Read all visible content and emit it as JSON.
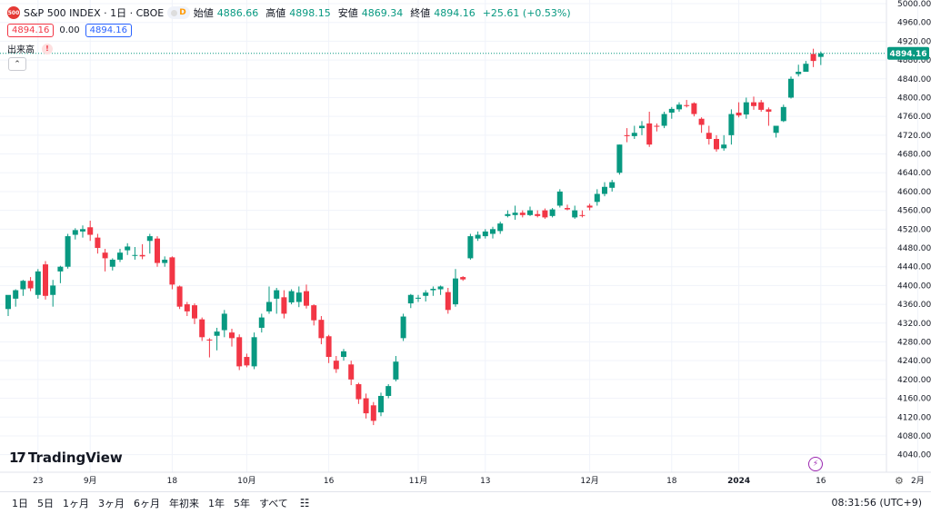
{
  "header": {
    "symbol_badge": "500",
    "title": "S&P 500 INDEX · 1日 · CBOE",
    "pill_letter": "D",
    "open_label": "始値",
    "open": "4886.66",
    "high_label": "高値",
    "high": "4898.15",
    "low_label": "安値",
    "low": "4869.34",
    "close_label": "終値",
    "close": "4894.16",
    "change": "+25.61 (+0.53%)",
    "price_box1": "4894.16",
    "spread": "0.00",
    "price_box2": "4894.16",
    "volume_label": "出来高",
    "warn": "!"
  },
  "logo": {
    "mark": "17",
    "name": "TradingView"
  },
  "bottom": {
    "timeframes": [
      "1日",
      "5日",
      "1ヶ月",
      "3ヶ月",
      "6ヶ月",
      "年初来",
      "1年",
      "5年",
      "すべて"
    ],
    "clock": "08:31:56 (UTC+9)"
  },
  "colors": {
    "up": "#089981",
    "down": "#f23645",
    "grid": "#f0f3fa",
    "axis_text": "#131722",
    "price_tag": "#089981"
  },
  "chart_data": {
    "type": "candlestick",
    "title": "S&P 500 INDEX · 1日 · CBOE",
    "last_price": 4894.16,
    "ylim": [
      4020,
      5000
    ],
    "y_ticks": [
      4040,
      4080,
      4120,
      4160,
      4200,
      4240,
      4280,
      4320,
      4360,
      4400,
      4440,
      4480,
      4520,
      4560,
      4600,
      4640,
      4680,
      4720,
      4760,
      4800,
      4840,
      4880,
      4920,
      4960,
      5000
    ],
    "x_tick_labels": [
      {
        "label": "23",
        "index": 4
      },
      {
        "label": "9月",
        "index": 11
      },
      {
        "label": "18",
        "index": 22
      },
      {
        "label": "10月",
        "index": 32
      },
      {
        "label": "16",
        "index": 43
      },
      {
        "label": "11月",
        "index": 55
      },
      {
        "label": "13",
        "index": 64
      },
      {
        "label": "12月",
        "index": 78
      },
      {
        "label": "18",
        "index": 89
      },
      {
        "label": "2024",
        "index": 98
      },
      {
        "label": "16",
        "index": 109
      },
      {
        "label": "2月",
        "index": 122
      }
    ],
    "candles": [
      {
        "o": 4350,
        "h": 4378,
        "l": 4335,
        "c": 4380
      },
      {
        "o": 4372,
        "h": 4392,
        "l": 4355,
        "c": 4390
      },
      {
        "o": 4392,
        "h": 4412,
        "l": 4378,
        "c": 4410
      },
      {
        "o": 4410,
        "h": 4418,
        "l": 4388,
        "c": 4394
      },
      {
        "o": 4380,
        "h": 4435,
        "l": 4372,
        "c": 4430
      },
      {
        "o": 4445,
        "h": 4452,
        "l": 4370,
        "c": 4378
      },
      {
        "o": 4380,
        "h": 4412,
        "l": 4355,
        "c": 4400
      },
      {
        "o": 4430,
        "h": 4442,
        "l": 4405,
        "c": 4440
      },
      {
        "o": 4440,
        "h": 4510,
        "l": 4436,
        "c": 4505
      },
      {
        "o": 4508,
        "h": 4522,
        "l": 4498,
        "c": 4518
      },
      {
        "o": 4515,
        "h": 4528,
        "l": 4502,
        "c": 4520
      },
      {
        "o": 4524,
        "h": 4538,
        "l": 4495,
        "c": 4508
      },
      {
        "o": 4502,
        "h": 4510,
        "l": 4468,
        "c": 4480
      },
      {
        "o": 4470,
        "h": 4478,
        "l": 4430,
        "c": 4458
      },
      {
        "o": 4440,
        "h": 4458,
        "l": 4432,
        "c": 4455
      },
      {
        "o": 4455,
        "h": 4478,
        "l": 4450,
        "c": 4470
      },
      {
        "o": 4475,
        "h": 4490,
        "l": 4465,
        "c": 4483
      },
      {
        "o": 4465,
        "h": 4482,
        "l": 4455,
        "c": 4465
      },
      {
        "o": 4465,
        "h": 4488,
        "l": 4456,
        "c": 4462
      },
      {
        "o": 4495,
        "h": 4510,
        "l": 4468,
        "c": 4505
      },
      {
        "o": 4500,
        "h": 4505,
        "l": 4440,
        "c": 4448
      },
      {
        "o": 4448,
        "h": 4462,
        "l": 4440,
        "c": 4455
      },
      {
        "o": 4460,
        "h": 4462,
        "l": 4392,
        "c": 4402
      },
      {
        "o": 4398,
        "h": 4400,
        "l": 4350,
        "c": 4355
      },
      {
        "o": 4360,
        "h": 4365,
        "l": 4335,
        "c": 4345
      },
      {
        "o": 4358,
        "h": 4362,
        "l": 4318,
        "c": 4330
      },
      {
        "o": 4328,
        "h": 4332,
        "l": 4282,
        "c": 4290
      },
      {
        "o": 4285,
        "h": 4288,
        "l": 4247,
        "c": 4283
      },
      {
        "o": 4293,
        "h": 4310,
        "l": 4262,
        "c": 4302
      },
      {
        "o": 4305,
        "h": 4348,
        "l": 4290,
        "c": 4340
      },
      {
        "o": 4300,
        "h": 4308,
        "l": 4270,
        "c": 4288
      },
      {
        "o": 4290,
        "h": 4296,
        "l": 4220,
        "c": 4228
      },
      {
        "o": 4248,
        "h": 4255,
        "l": 4226,
        "c": 4230
      },
      {
        "o": 4228,
        "h": 4300,
        "l": 4222,
        "c": 4290
      },
      {
        "o": 4310,
        "h": 4340,
        "l": 4300,
        "c": 4332
      },
      {
        "o": 4345,
        "h": 4398,
        "l": 4340,
        "c": 4365
      },
      {
        "o": 4372,
        "h": 4395,
        "l": 4340,
        "c": 4390
      },
      {
        "o": 4375,
        "h": 4390,
        "l": 4330,
        "c": 4340
      },
      {
        "o": 4364,
        "h": 4392,
        "l": 4360,
        "c": 4388
      },
      {
        "o": 4365,
        "h": 4398,
        "l": 4354,
        "c": 4385
      },
      {
        "o": 4388,
        "h": 4402,
        "l": 4351,
        "c": 4357
      },
      {
        "o": 4358,
        "h": 4360,
        "l": 4315,
        "c": 4326
      },
      {
        "o": 4327,
        "h": 4335,
        "l": 4275,
        "c": 4288
      },
      {
        "o": 4292,
        "h": 4295,
        "l": 4235,
        "c": 4248
      },
      {
        "o": 4240,
        "h": 4250,
        "l": 4214,
        "c": 4222
      },
      {
        "o": 4248,
        "h": 4265,
        "l": 4240,
        "c": 4260
      },
      {
        "o": 4232,
        "h": 4240,
        "l": 4188,
        "c": 4200
      },
      {
        "o": 4190,
        "h": 4193,
        "l": 4148,
        "c": 4158
      },
      {
        "o": 4160,
        "h": 4170,
        "l": 4117,
        "c": 4128
      },
      {
        "o": 4145,
        "h": 4152,
        "l": 4103,
        "c": 4112
      },
      {
        "o": 4130,
        "h": 4172,
        "l": 4122,
        "c": 4165
      },
      {
        "o": 4165,
        "h": 4190,
        "l": 4160,
        "c": 4186
      },
      {
        "o": 4200,
        "h": 4250,
        "l": 4196,
        "c": 4238
      },
      {
        "o": 4288,
        "h": 4340,
        "l": 4282,
        "c": 4334
      },
      {
        "o": 4362,
        "h": 4382,
        "l": 4352,
        "c": 4380
      },
      {
        "o": 4372,
        "h": 4380,
        "l": 4365,
        "c": 4374
      },
      {
        "o": 4378,
        "h": 4390,
        "l": 4366,
        "c": 4385
      },
      {
        "o": 4390,
        "h": 4398,
        "l": 4378,
        "c": 4393
      },
      {
        "o": 4392,
        "h": 4400,
        "l": 4380,
        "c": 4398
      },
      {
        "o": 4386,
        "h": 4395,
        "l": 4340,
        "c": 4348
      },
      {
        "o": 4360,
        "h": 4435,
        "l": 4355,
        "c": 4415
      },
      {
        "o": 4418,
        "h": 4420,
        "l": 4410,
        "c": 4413
      },
      {
        "o": 4458,
        "h": 4510,
        "l": 4455,
        "c": 4505
      },
      {
        "o": 4500,
        "h": 4515,
        "l": 4495,
        "c": 4508
      },
      {
        "o": 4505,
        "h": 4520,
        "l": 4500,
        "c": 4515
      },
      {
        "o": 4510,
        "h": 4525,
        "l": 4500,
        "c": 4520
      },
      {
        "o": 4516,
        "h": 4536,
        "l": 4510,
        "c": 4532
      },
      {
        "o": 4548,
        "h": 4560,
        "l": 4545,
        "c": 4552
      },
      {
        "o": 4550,
        "h": 4570,
        "l": 4540,
        "c": 4555
      },
      {
        "o": 4555,
        "h": 4560,
        "l": 4545,
        "c": 4550
      },
      {
        "o": 4550,
        "h": 4568,
        "l": 4548,
        "c": 4560
      },
      {
        "o": 4552,
        "h": 4560,
        "l": 4545,
        "c": 4548
      },
      {
        "o": 4560,
        "h": 4564,
        "l": 4542,
        "c": 4545
      },
      {
        "o": 4548,
        "h": 4565,
        "l": 4545,
        "c": 4562
      },
      {
        "o": 4570,
        "h": 4605,
        "l": 4566,
        "c": 4600
      },
      {
        "o": 4565,
        "h": 4572,
        "l": 4560,
        "c": 4562
      },
      {
        "o": 4545,
        "h": 4570,
        "l": 4542,
        "c": 4560
      },
      {
        "o": 4550,
        "h": 4560,
        "l": 4545,
        "c": 4548
      },
      {
        "o": 4570,
        "h": 4574,
        "l": 4560,
        "c": 4566
      },
      {
        "o": 4578,
        "h": 4605,
        "l": 4570,
        "c": 4595
      },
      {
        "o": 4595,
        "h": 4620,
        "l": 4590,
        "c": 4610
      },
      {
        "o": 4608,
        "h": 4625,
        "l": 4600,
        "c": 4620
      },
      {
        "o": 4640,
        "h": 4700,
        "l": 4636,
        "c": 4700
      },
      {
        "o": 4720,
        "h": 4735,
        "l": 4705,
        "c": 4718
      },
      {
        "o": 4718,
        "h": 4740,
        "l": 4712,
        "c": 4725
      },
      {
        "o": 4735,
        "h": 4750,
        "l": 4720,
        "c": 4740
      },
      {
        "o": 4745,
        "h": 4770,
        "l": 4695,
        "c": 4700
      },
      {
        "o": 4740,
        "h": 4745,
        "l": 4728,
        "c": 4738
      },
      {
        "o": 4740,
        "h": 4770,
        "l": 4735,
        "c": 4765
      },
      {
        "o": 4768,
        "h": 4780,
        "l": 4755,
        "c": 4776
      },
      {
        "o": 4775,
        "h": 4790,
        "l": 4770,
        "c": 4785
      },
      {
        "o": 4784,
        "h": 4795,
        "l": 4779,
        "c": 4782
      },
      {
        "o": 4788,
        "h": 4790,
        "l": 4760,
        "c": 4765
      },
      {
        "o": 4755,
        "h": 4758,
        "l": 4725,
        "c": 4742
      },
      {
        "o": 4725,
        "h": 4740,
        "l": 4700,
        "c": 4712
      },
      {
        "o": 4712,
        "h": 4720,
        "l": 4685,
        "c": 4690
      },
      {
        "o": 4692,
        "h": 4720,
        "l": 4687,
        "c": 4700
      },
      {
        "o": 4720,
        "h": 4775,
        "l": 4700,
        "c": 4765
      },
      {
        "o": 4768,
        "h": 4790,
        "l": 4758,
        "c": 4762
      },
      {
        "o": 4764,
        "h": 4800,
        "l": 4755,
        "c": 4790
      },
      {
        "o": 4790,
        "h": 4802,
        "l": 4774,
        "c": 4782
      },
      {
        "o": 4790,
        "h": 4795,
        "l": 4770,
        "c": 4774
      },
      {
        "o": 4775,
        "h": 4779,
        "l": 4740,
        "c": 4770
      },
      {
        "o": 4725,
        "h": 4740,
        "l": 4715,
        "c": 4740
      },
      {
        "o": 4750,
        "h": 4785,
        "l": 4748,
        "c": 4780
      },
      {
        "o": 4800,
        "h": 4845,
        "l": 4798,
        "c": 4840
      },
      {
        "o": 4850,
        "h": 4870,
        "l": 4845,
        "c": 4855
      },
      {
        "o": 4855,
        "h": 4878,
        "l": 4855,
        "c": 4872
      },
      {
        "o": 4893,
        "h": 4904,
        "l": 4865,
        "c": 4878
      },
      {
        "o": 4886.66,
        "h": 4898.15,
        "l": 4869.34,
        "c": 4894.16
      }
    ]
  }
}
